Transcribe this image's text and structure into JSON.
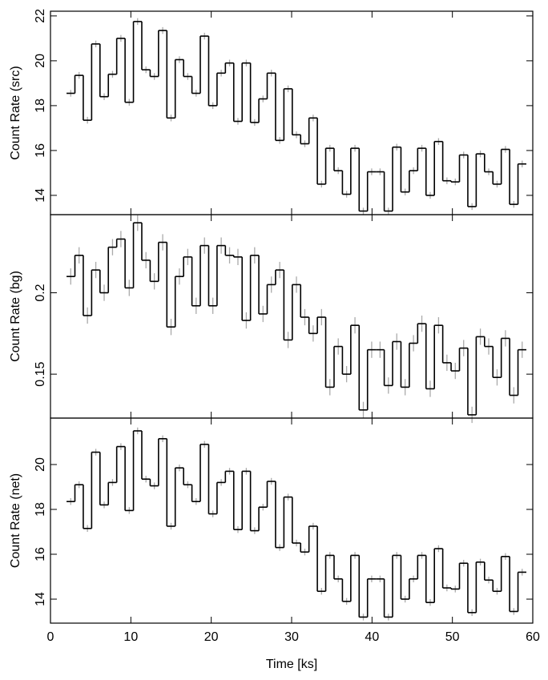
{
  "chart_data": [
    {
      "type": "step",
      "ylabel": "Count Rate (src)",
      "color": "#000000",
      "error_color": "#aaaaaa",
      "error": 0.15,
      "x": [
        2.52,
        3.56,
        4.6,
        5.64,
        6.68,
        7.72,
        8.76,
        9.8,
        10.84,
        11.88,
        12.92,
        13.96,
        15.0,
        16.04,
        17.08,
        18.12,
        19.16,
        20.2,
        21.24,
        22.28,
        23.32,
        24.36,
        25.4,
        26.44,
        27.48,
        28.52,
        29.56,
        30.6,
        31.64,
        32.68,
        33.72,
        34.76,
        35.8,
        36.84,
        37.88,
        38.92,
        39.96,
        41.0,
        42.04,
        43.08,
        44.12,
        45.16,
        46.2,
        47.24,
        48.28,
        49.32,
        50.36,
        51.4,
        52.44,
        53.48,
        54.52,
        55.56,
        56.6,
        57.64,
        58.68
      ],
      "values": [
        18.55,
        19.35,
        17.35,
        20.75,
        18.4,
        19.4,
        21.0,
        18.15,
        21.75,
        19.6,
        19.3,
        21.35,
        17.45,
        20.05,
        19.3,
        18.55,
        21.1,
        18.0,
        19.45,
        19.9,
        17.3,
        19.9,
        17.25,
        18.3,
        19.45,
        16.45,
        18.75,
        16.7,
        16.3,
        17.45,
        14.5,
        16.1,
        15.1,
        14.05,
        16.1,
        13.3,
        15.05,
        15.05,
        13.3,
        16.15,
        14.15,
        15.1,
        16.1,
        14.0,
        16.4,
        14.65,
        14.6,
        15.8,
        13.5,
        15.85,
        15.05,
        14.5,
        16.05,
        13.6,
        15.4
      ],
      "xlim": [
        0,
        60
      ],
      "xticks": [
        0,
        10,
        20,
        30,
        40,
        50,
        60
      ],
      "ylim": [
        13.14,
        22.21
      ],
      "yticks": [
        14,
        16,
        18,
        20,
        22
      ]
    },
    {
      "type": "step",
      "ylabel": "Count Rate (bg)",
      "color": "#000000",
      "error_color": "#aaaaaa",
      "error": 0.005,
      "x": [
        2.52,
        3.56,
        4.6,
        5.64,
        6.68,
        7.72,
        8.76,
        9.8,
        10.84,
        11.88,
        12.92,
        13.96,
        15.0,
        16.04,
        17.08,
        18.12,
        19.16,
        20.2,
        21.24,
        22.28,
        23.32,
        24.36,
        25.4,
        26.44,
        27.48,
        28.52,
        29.56,
        30.6,
        31.64,
        32.68,
        33.72,
        34.76,
        35.8,
        36.84,
        37.88,
        38.92,
        39.96,
        41.0,
        42.04,
        43.08,
        44.12,
        45.16,
        46.2,
        47.24,
        48.28,
        49.32,
        50.36,
        51.4,
        52.44,
        53.48,
        54.52,
        55.56,
        56.6,
        57.64,
        58.68
      ],
      "values": [
        0.21,
        0.223,
        0.186,
        0.214,
        0.2,
        0.228,
        0.233,
        0.203,
        0.243,
        0.22,
        0.207,
        0.231,
        0.179,
        0.21,
        0.222,
        0.192,
        0.229,
        0.192,
        0.229,
        0.223,
        0.222,
        0.183,
        0.223,
        0.187,
        0.205,
        0.214,
        0.171,
        0.205,
        0.185,
        0.175,
        0.185,
        0.142,
        0.167,
        0.15,
        0.18,
        0.128,
        0.165,
        0.165,
        0.143,
        0.17,
        0.142,
        0.169,
        0.181,
        0.141,
        0.18,
        0.157,
        0.152,
        0.166,
        0.125,
        0.173,
        0.167,
        0.148,
        0.172,
        0.137,
        0.165
      ],
      "xlim": [
        0,
        60
      ],
      "xticks": [
        0,
        10,
        20,
        30,
        40,
        50,
        60
      ],
      "ylim": [
        0.123,
        0.248
      ],
      "yticks": [
        0.15,
        0.2
      ]
    },
    {
      "type": "step",
      "ylabel": "Count Rate (net)",
      "xlabel": "Time [ks]",
      "color": "#000000",
      "error_color": "#aaaaaa",
      "error": 0.15,
      "x": [
        2.52,
        3.56,
        4.6,
        5.64,
        6.68,
        7.72,
        8.76,
        9.8,
        10.84,
        11.88,
        12.92,
        13.96,
        15.0,
        16.04,
        17.08,
        18.12,
        19.16,
        20.2,
        21.24,
        22.28,
        23.32,
        24.36,
        25.4,
        26.44,
        27.48,
        28.52,
        29.56,
        30.6,
        31.64,
        32.68,
        33.72,
        34.76,
        35.8,
        36.84,
        37.88,
        38.92,
        39.96,
        41.0,
        42.04,
        43.08,
        44.12,
        45.16,
        46.2,
        47.24,
        48.28,
        49.32,
        50.36,
        51.4,
        52.44,
        53.48,
        54.52,
        55.56,
        56.6,
        57.64,
        58.68
      ],
      "values": [
        18.35,
        19.1,
        17.15,
        20.55,
        18.2,
        19.2,
        20.8,
        17.95,
        21.5,
        19.35,
        19.05,
        21.15,
        17.25,
        19.85,
        19.1,
        18.35,
        20.9,
        17.8,
        19.2,
        19.7,
        17.1,
        19.7,
        17.05,
        18.1,
        19.25,
        16.3,
        18.55,
        16.5,
        16.1,
        17.25,
        14.35,
        15.95,
        14.9,
        13.9,
        15.95,
        13.2,
        14.9,
        14.9,
        13.2,
        15.95,
        14.0,
        14.9,
        15.95,
        13.85,
        16.25,
        14.5,
        14.45,
        15.6,
        13.4,
        15.65,
        14.85,
        14.35,
        15.9,
        13.45,
        15.2
      ],
      "xlim": [
        0,
        60
      ],
      "xticks": [
        0,
        10,
        20,
        30,
        40,
        50,
        60
      ],
      "ylim": [
        12.93,
        22.07
      ],
      "yticks": [
        14,
        16,
        18,
        20
      ]
    }
  ]
}
